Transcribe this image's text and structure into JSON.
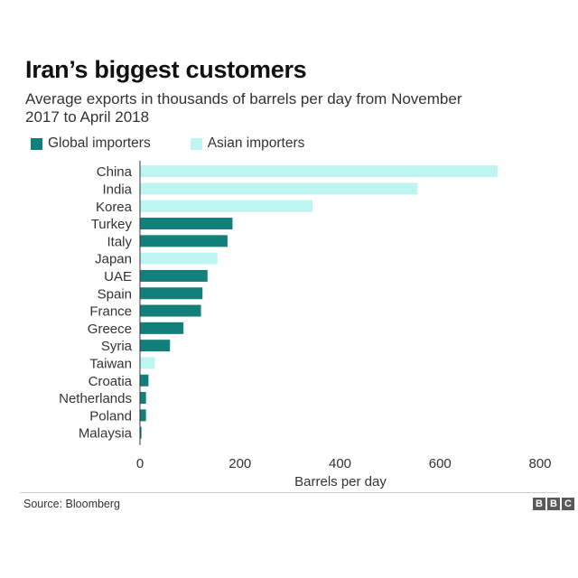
{
  "header": {
    "title": "Iran’s biggest customers",
    "subtitle": "Average exports in thousands of barrels per day from November 2017 to April 2018"
  },
  "legend": {
    "global_label": "Global importers",
    "asian_label": "Asian importers"
  },
  "colors": {
    "global": "#127f7a",
    "asian": "#bff5f0"
  },
  "chart_data": {
    "type": "bar",
    "orientation": "horizontal",
    "title": "Iran’s biggest customers",
    "subtitle": "Average exports in thousands of barrels per day from November 2017 to April 2018",
    "xlabel": "Barrels per day",
    "ylabel": "",
    "xlim": [
      0,
      800
    ],
    "xticks": [
      "0",
      "200",
      "400",
      "600",
      "800"
    ],
    "xtick_values": [
      0,
      200,
      400,
      600,
      800
    ],
    "grid": false,
    "legend_position": "top-left",
    "series": [
      {
        "name": "Global importers"
      },
      {
        "name": "Asian importers"
      }
    ],
    "categories": [
      "China",
      "India",
      "Korea",
      "Turkey",
      "Italy",
      "Japan",
      "UAE",
      "Spain",
      "France",
      "Greece",
      "Syria",
      "Taiwan",
      "Croatia",
      "Netherlands",
      "Poland",
      "Malaysia"
    ],
    "values": [
      715,
      555,
      345,
      185,
      175,
      155,
      135,
      125,
      122,
      87,
      60,
      30,
      17,
      12,
      12,
      3
    ],
    "groups": [
      "Asian importers",
      "Asian importers",
      "Asian importers",
      "Global importers",
      "Global importers",
      "Asian importers",
      "Global importers",
      "Global importers",
      "Global importers",
      "Global importers",
      "Global importers",
      "Asian importers",
      "Global importers",
      "Global importers",
      "Global importers",
      "Global importers"
    ]
  },
  "footer": {
    "source": "Source: Bloomberg",
    "logo_letters": [
      "B",
      "B",
      "C"
    ]
  }
}
